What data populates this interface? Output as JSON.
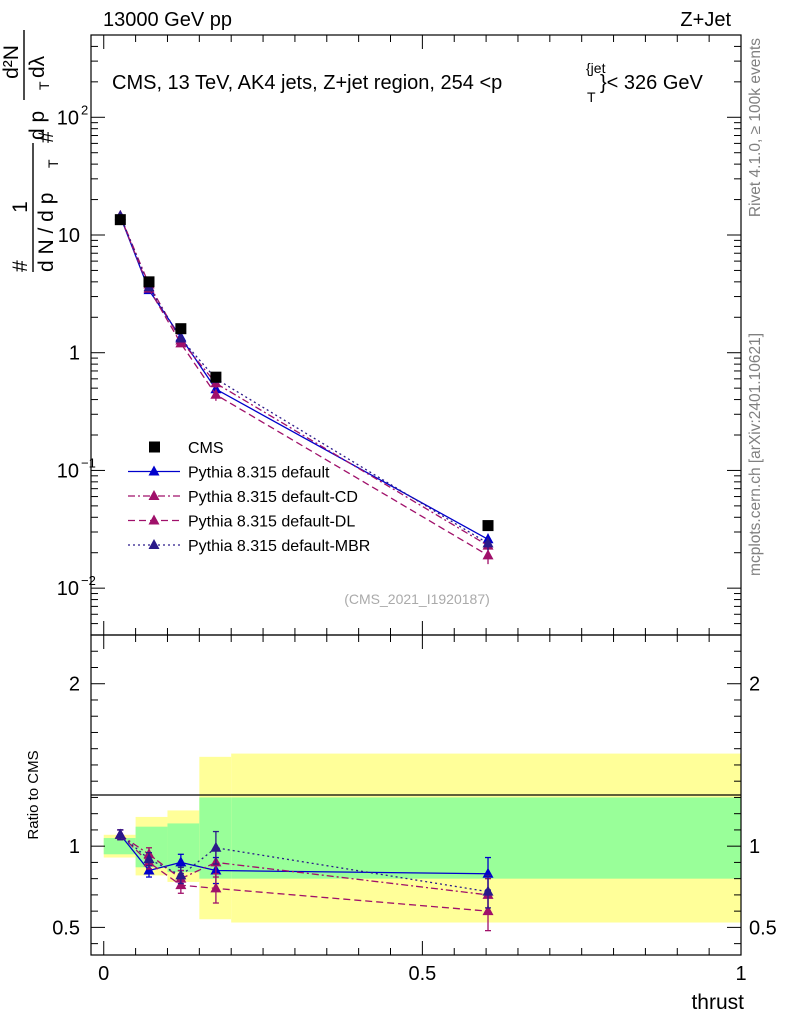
{
  "header": {
    "left": "13000 GeV pp",
    "right": "Z+Jet"
  },
  "side": {
    "rivet": "Rivet 4.1.0, ≥ 100k events",
    "mcplots": "mcplots.cern.ch [arXiv:2401.10621]"
  },
  "chart_data": [
    {
      "type": "line",
      "title_main": "CMS, 13 TeV, AK4 jets, Z+jet region, 254 <p",
      "title_sub": "T",
      "title_sup": "{jet",
      "title_tail": "}< 326 GeV",
      "ylabel": {
        "hash_left": "#",
        "one": "1",
        "dN": "d N / d p",
        "T1": "T",
        "hash_right": "#",
        "d2N": "d²N",
        "dpt": "d p",
        "T2": "T",
        "dlambda": "dλ"
      },
      "yscale": "log",
      "ylim": [
        0.004,
        500
      ],
      "xlim": [
        -0.02,
        1.0
      ],
      "yticks": [
        {
          "v": 0.01,
          "base": "10",
          "exp": "−2"
        },
        {
          "v": 0.1,
          "base": "10",
          "exp": "−1"
        },
        {
          "v": 1,
          "label": "1"
        },
        {
          "v": 10,
          "label": "10"
        },
        {
          "v": 100,
          "base": "10",
          "exp": "2"
        }
      ],
      "watermark": "(CMS_2021_I1920187)",
      "legend": [
        {
          "label": "CMS",
          "color": "#000000",
          "marker": "square",
          "dash": "none"
        },
        {
          "label": "Pythia 8.315 default",
          "color": "#0000cc",
          "marker": "triangle",
          "dash": "solid"
        },
        {
          "label": "Pythia 8.315 default-CD",
          "color": "#a0106a",
          "marker": "triangle",
          "dash": "dashdot"
        },
        {
          "label": "Pythia 8.315 default-DL",
          "color": "#a0106a",
          "marker": "triangle",
          "dash": "dashed"
        },
        {
          "label": "Pythia 8.315 default-MBR",
          "color": "#2a1a8a",
          "marker": "triangle",
          "dash": "dotted"
        }
      ],
      "x": [
        0.026,
        0.071,
        0.121,
        0.176,
        0.603
      ],
      "cms": [
        13.5,
        4.0,
        1.6,
        0.62,
        0.034
      ],
      "series": [
        {
          "name": "Pythia 8.315 default",
          "color": "#0000cc",
          "dash": "solid",
          "values": [
            14.4,
            3.4,
            1.35,
            0.49,
            0.026
          ],
          "err": [
            0.4,
            0.15,
            0.07,
            0.04,
            0.003
          ]
        },
        {
          "name": "Pythia 8.315 default-CD",
          "color": "#a0106a",
          "dash": "dashdot",
          "values": [
            14.5,
            3.8,
            1.27,
            0.55,
            0.023
          ],
          "err": [
            0.4,
            0.15,
            0.07,
            0.05,
            0.003
          ]
        },
        {
          "name": "Pythia 8.315 default-DL",
          "color": "#a0106a",
          "dash": "dashed",
          "values": [
            14.5,
            3.5,
            1.2,
            0.44,
            0.019
          ],
          "err": [
            0.4,
            0.15,
            0.07,
            0.05,
            0.003
          ]
        },
        {
          "name": "Pythia 8.315 default-MBR",
          "color": "#2a1a8a",
          "dash": "dotted",
          "values": [
            14.5,
            3.6,
            1.32,
            0.6,
            0.024
          ],
          "err": [
            0.4,
            0.15,
            0.07,
            0.05,
            0.003
          ]
        }
      ]
    },
    {
      "type": "line",
      "ylabel": "Ratio to CMS",
      "xlabel": "thrust",
      "ylim": [
        0.33,
        2.3
      ],
      "xlim": [
        -0.02,
        1.0
      ],
      "yticks": [
        0.5,
        1,
        2
      ],
      "xticks": [
        {
          "v": 0,
          "label": "0"
        },
        {
          "v": 0.5,
          "label": "0.5"
        },
        {
          "v": 1,
          "label": "1"
        }
      ],
      "bins": [
        0,
        0.05,
        0.1,
        0.15,
        0.2,
        1.0
      ],
      "band_green": [
        [
          0.95,
          1.05
        ],
        [
          0.87,
          1.12
        ],
        [
          0.84,
          1.14
        ],
        [
          0.8,
          1.3
        ],
        [
          0.8,
          1.3
        ]
      ],
      "band_yellow": [
        [
          0.93,
          1.07
        ],
        [
          0.82,
          1.18
        ],
        [
          0.78,
          1.22
        ],
        [
          0.55,
          1.55
        ],
        [
          0.53,
          1.57
        ]
      ],
      "x": [
        0.026,
        0.071,
        0.121,
        0.176,
        0.603
      ],
      "series": [
        {
          "name": "Pythia 8.315 default",
          "color": "#0000cc",
          "dash": "solid",
          "values": [
            1.07,
            0.85,
            0.9,
            0.85,
            0.83
          ],
          "err": [
            0.03,
            0.04,
            0.05,
            0.08,
            0.1
          ]
        },
        {
          "name": "Pythia 8.315 default-CD",
          "color": "#a0106a",
          "dash": "dashdot",
          "values": [
            1.07,
            0.95,
            0.8,
            0.9,
            0.7
          ],
          "err": [
            0.03,
            0.04,
            0.05,
            0.09,
            0.1
          ]
        },
        {
          "name": "Pythia 8.315 default-DL",
          "color": "#a0106a",
          "dash": "dashed",
          "values": [
            1.07,
            0.9,
            0.76,
            0.74,
            0.6
          ],
          "err": [
            0.03,
            0.04,
            0.05,
            0.09,
            0.12
          ]
        },
        {
          "name": "Pythia 8.315 default-MBR",
          "color": "#2a1a8a",
          "dash": "dotted",
          "values": [
            1.07,
            0.92,
            0.82,
            0.99,
            0.72
          ],
          "err": [
            0.03,
            0.04,
            0.05,
            0.1,
            0.1
          ]
        }
      ]
    }
  ]
}
